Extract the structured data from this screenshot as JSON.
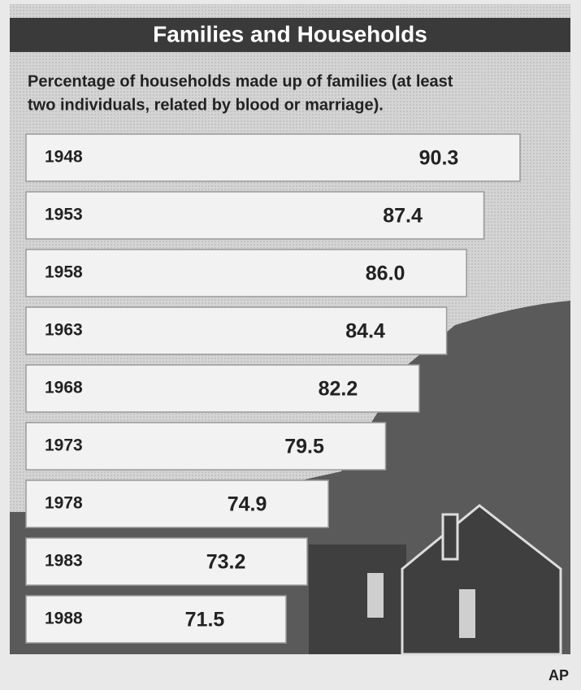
{
  "chart_data": {
    "type": "bar",
    "orientation": "horizontal",
    "title": "Families and Households",
    "subtitle": [
      "Percentage of households made up of families (at least",
      "two individuals, related by blood or marriage)."
    ],
    "categories": [
      "1948",
      "1953",
      "1958",
      "1963",
      "1968",
      "1973",
      "1978",
      "1983",
      "1988"
    ],
    "values": [
      90.3,
      87.4,
      86.0,
      84.4,
      82.2,
      79.5,
      74.9,
      73.2,
      71.5
    ],
    "value_labels": [
      "90.3",
      "87.4",
      "86.0",
      "84.4",
      "82.2",
      "79.5",
      "74.9",
      "73.2",
      "71.5"
    ],
    "color": "#f2f2f2",
    "source": "AP"
  }
}
